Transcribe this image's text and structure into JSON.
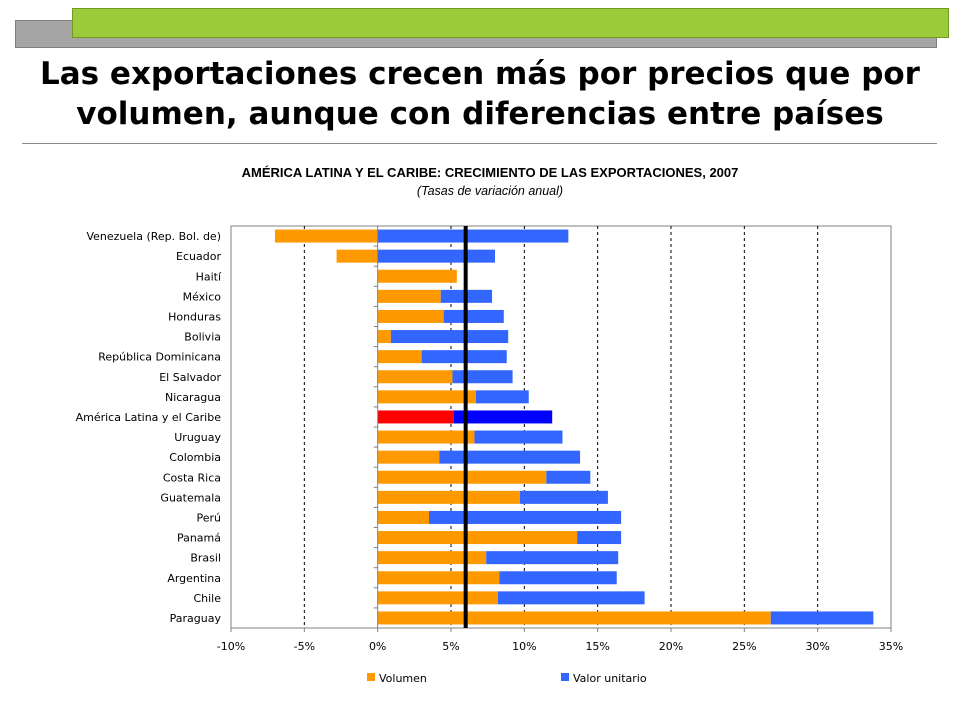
{
  "slide": {
    "title_line1": "Las exportaciones crecen más por precios que por",
    "title_line2": "volumen, aunque con diferencias entre países"
  },
  "chart_data": {
    "type": "bar",
    "orientation": "horizontal",
    "stacked": true,
    "title": "AMÉRICA LATINA Y EL CARIBE: CRECIMIENTO DE LAS EXPORTACIONES, 2007",
    "subtitle": "(Tasas de variación anual)",
    "categories": [
      "Venezuela (Rep. Bol. de)",
      "Ecuador",
      "Haití",
      "México",
      "Honduras",
      "Bolivia",
      "República Dominicana",
      "El Salvador",
      "Nicaragua",
      "América Latina y el Caribe",
      "Uruguay",
      "Colombia",
      "Costa Rica",
      "Guatemala",
      "Perú",
      "Panamá",
      "Brasil",
      "Argentina",
      "Chile",
      "Paraguay"
    ],
    "highlight_category": "América Latina y el Caribe",
    "series": [
      {
        "name": "Volumen",
        "color": "#ff9900",
        "highlight_color": "#ff0000",
        "values": [
          -7.0,
          -2.8,
          5.4,
          4.3,
          4.5,
          0.9,
          3.0,
          5.1,
          6.7,
          5.2,
          6.6,
          4.2,
          11.5,
          9.7,
          3.5,
          13.6,
          7.4,
          8.3,
          8.2,
          26.8
        ]
      },
      {
        "name": "Valor unitario",
        "color": "#3366ff",
        "highlight_color": "#0000ff",
        "values": [
          13.0,
          8.0,
          0.0,
          3.5,
          4.1,
          8.0,
          5.8,
          4.1,
          3.6,
          6.7,
          6.0,
          9.6,
          3.0,
          6.0,
          13.1,
          3.0,
          9.0,
          8.0,
          10.0,
          7.0
        ]
      }
    ],
    "xlim": [
      -10,
      35
    ],
    "xticks": [
      -10,
      -5,
      0,
      5,
      10,
      15,
      20,
      25,
      30,
      35
    ],
    "xtick_labels": [
      "-10%",
      "-5%",
      "0%",
      "5%",
      "10%",
      "15%",
      "20%",
      "25%",
      "30%",
      "35%"
    ],
    "reference_line": 6.0,
    "grid": "vertical-dashed",
    "legend_position": "bottom"
  }
}
